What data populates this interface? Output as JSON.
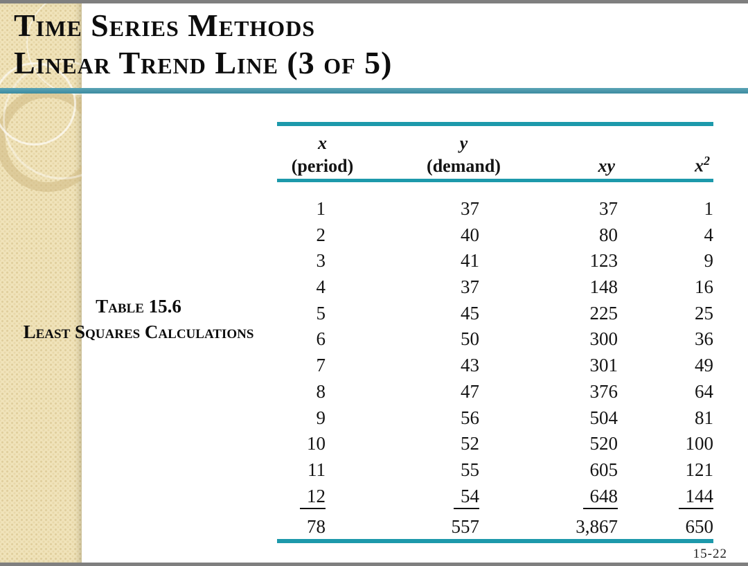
{
  "slide": {
    "title_line1": "Time Series Methods",
    "title_line2": "Linear Trend Line (3 of 5)",
    "page_number": "15-22"
  },
  "caption": {
    "line1": "Table 15.6",
    "line2": "Least Squares Calculations"
  },
  "table": {
    "headers": [
      {
        "var": "x",
        "sup": "",
        "sub": "(period)"
      },
      {
        "var": "y",
        "sup": "",
        "sub": "(demand)"
      },
      {
        "var": "xy",
        "sup": "",
        "sub": ""
      },
      {
        "var": "x",
        "sup": "2",
        "sub": ""
      }
    ],
    "rows": [
      [
        1,
        37,
        37,
        1
      ],
      [
        2,
        40,
        80,
        4
      ],
      [
        3,
        41,
        123,
        9
      ],
      [
        4,
        37,
        148,
        16
      ],
      [
        5,
        45,
        225,
        25
      ],
      [
        6,
        50,
        300,
        36
      ],
      [
        7,
        43,
        301,
        49
      ],
      [
        8,
        47,
        376,
        64
      ],
      [
        9,
        56,
        504,
        81
      ],
      [
        10,
        52,
        520,
        100
      ],
      [
        11,
        55,
        605,
        121
      ],
      [
        12,
        54,
        648,
        144
      ]
    ],
    "totals": [
      "78",
      "557",
      "3,867",
      "650"
    ]
  },
  "colors": {
    "table_rule_teal": "#1d99ab",
    "title_rule_teal": "#3c8ba0",
    "sidebar_beige": "#f0e3ba",
    "border_gray": "#7f7f7f",
    "text_black": "#0d0d0d"
  },
  "chart_data": {
    "type": "table",
    "title": "Table 15.6 Least Squares Calculations",
    "columns": [
      "x (period)",
      "y (demand)",
      "xy",
      "x^2"
    ],
    "rows": [
      [
        1,
        37,
        37,
        1
      ],
      [
        2,
        40,
        80,
        4
      ],
      [
        3,
        41,
        123,
        9
      ],
      [
        4,
        37,
        148,
        16
      ],
      [
        5,
        45,
        225,
        25
      ],
      [
        6,
        50,
        300,
        36
      ],
      [
        7,
        43,
        301,
        49
      ],
      [
        8,
        47,
        376,
        64
      ],
      [
        9,
        56,
        504,
        81
      ],
      [
        10,
        52,
        520,
        100
      ],
      [
        11,
        55,
        605,
        121
      ],
      [
        12,
        54,
        648,
        144
      ]
    ],
    "totals": [
      78,
      557,
      3867,
      650
    ]
  }
}
